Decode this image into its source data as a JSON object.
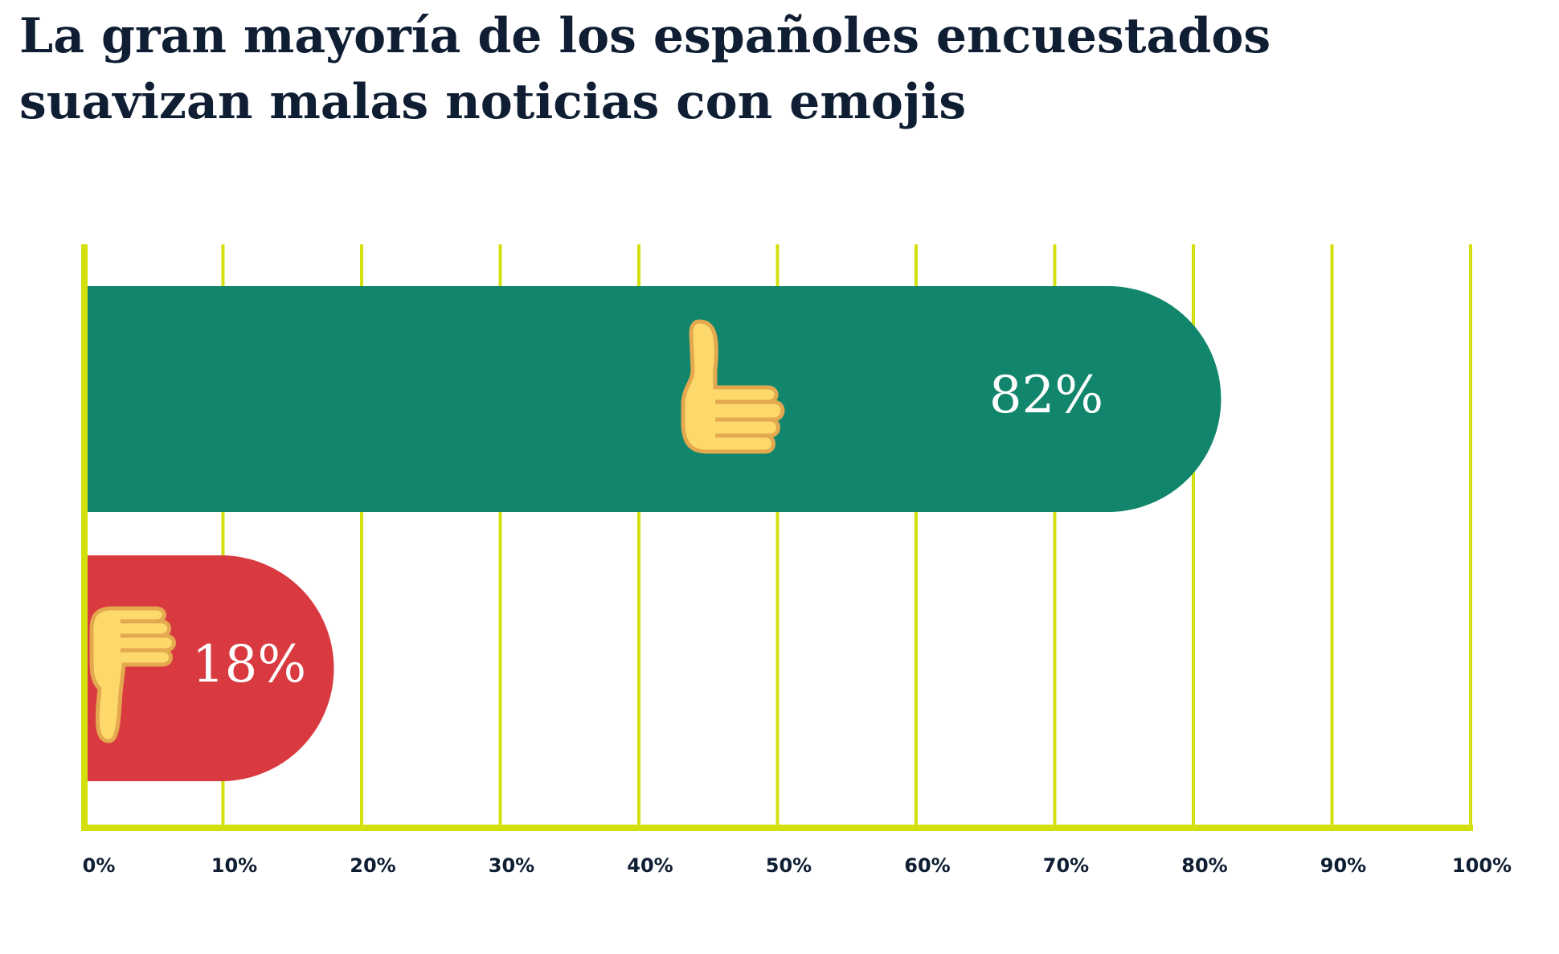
{
  "chart_data": {
    "type": "bar",
    "orientation": "horizontal",
    "title": "La gran mayoría de los españoles encuestados suavizan malas noticias con emojis",
    "categories": [
      null,
      null
    ],
    "values": [
      82,
      18
    ],
    "value_labels": [
      "82%",
      "18%"
    ],
    "colors": [
      "#12866c",
      "#d93a40"
    ],
    "xlim": [
      0,
      100
    ],
    "xticks": [
      {
        "value": 0,
        "label": "0%"
      },
      {
        "value": 10,
        "label": "10%"
      },
      {
        "value": 20,
        "label": "20%"
      },
      {
        "value": 30,
        "label": "30%"
      },
      {
        "value": 40,
        "label": "40%"
      },
      {
        "value": 50,
        "label": "50%"
      },
      {
        "value": 60,
        "label": "60%"
      },
      {
        "value": 70,
        "label": "70%"
      },
      {
        "value": 80,
        "label": "80%"
      },
      {
        "value": 90,
        "label": "90%"
      },
      {
        "value": 100,
        "label": "100%"
      }
    ],
    "grid": true,
    "grid_color": "#d3e00c"
  }
}
